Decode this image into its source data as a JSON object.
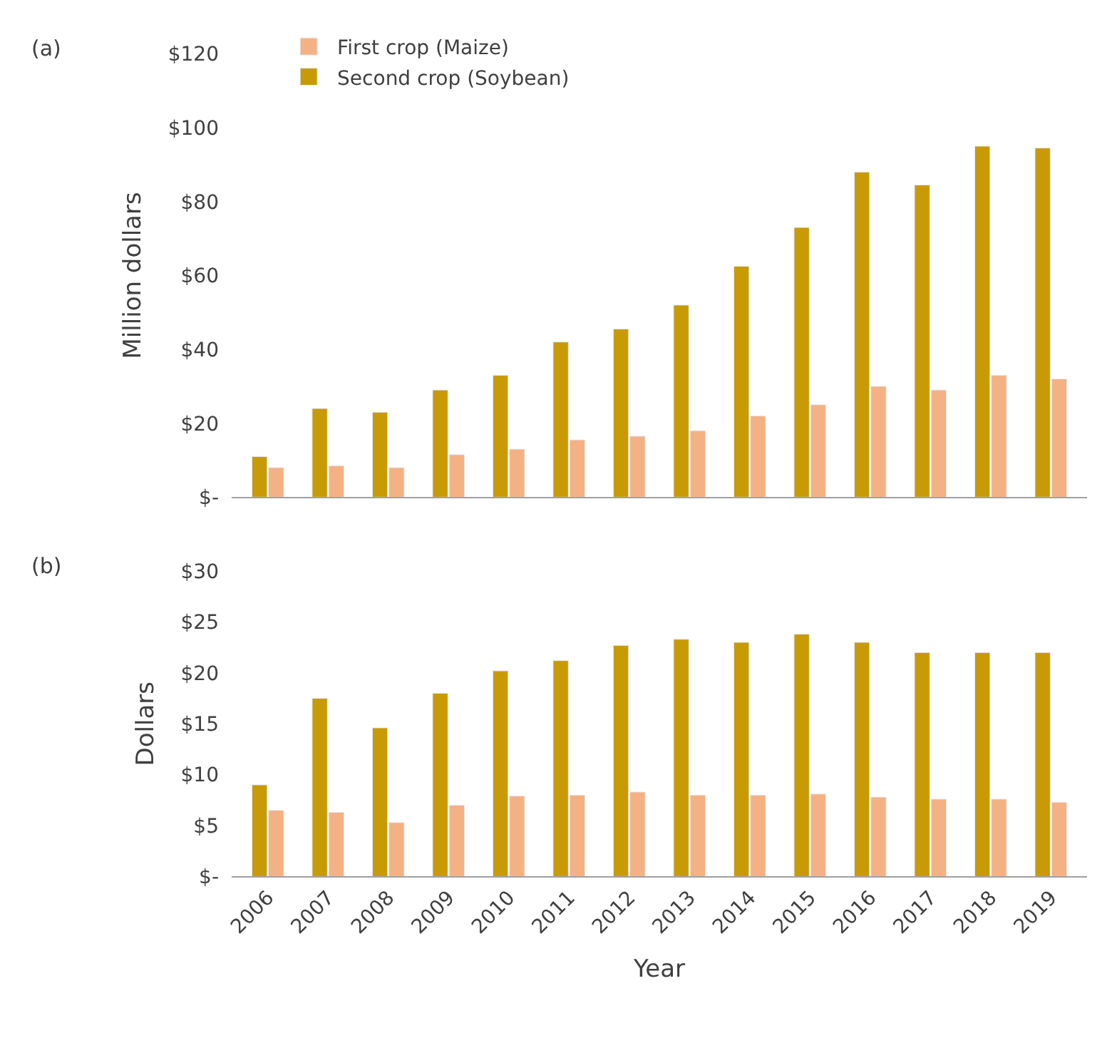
{
  "chart_data": [
    {
      "type": "bar",
      "ylabel": "Million dollars",
      "annotations": [
        "(a)"
      ],
      "categories": [
        "2006",
        "2007",
        "2008",
        "2009",
        "2010",
        "2011",
        "2012",
        "2013",
        "2014",
        "2015",
        "2016",
        "2017",
        "2018",
        "2019"
      ],
      "series": [
        {
          "name": "Second crop (Soybean)",
          "color": "#c89a06",
          "values": [
            11,
            24,
            23,
            29,
            33,
            42,
            45.5,
            52,
            62.5,
            73,
            88,
            84.5,
            95,
            94.5
          ]
        },
        {
          "name": "First crop (Maize)",
          "color": "#f4b183",
          "values": [
            8,
            8.5,
            8,
            11.5,
            13,
            15.5,
            16.5,
            18,
            22,
            25,
            30,
            29,
            33,
            32
          ]
        }
      ],
      "ylim": [
        0,
        120
      ],
      "yticks": [
        {
          "value": 0,
          "label": "$-"
        },
        {
          "value": 20,
          "label": "$20"
        },
        {
          "value": 40,
          "label": "$40"
        },
        {
          "value": 60,
          "label": "$60"
        },
        {
          "value": 80,
          "label": "$80"
        },
        {
          "value": 100,
          "label": "$100"
        },
        {
          "value": 120,
          "label": "$120"
        }
      ],
      "legend": "top left",
      "tick_labels": "y"
    },
    {
      "type": "bar",
      "xlabel": "Year",
      "ylabel": "Dollars",
      "annotations": [
        "(b)"
      ],
      "categories": [
        "2006",
        "2007",
        "2008",
        "2009",
        "2010",
        "2011",
        "2012",
        "2013",
        "2014",
        "2015",
        "2016",
        "2017",
        "2018",
        "2019"
      ],
      "series": [
        {
          "color": "#c89a06",
          "values": [
            9,
            17.5,
            14.6,
            18,
            20.2,
            21.2,
            22.7,
            23.3,
            23,
            23.8,
            23,
            22,
            22,
            22
          ]
        },
        {
          "color": "#f4b183",
          "values": [
            6.5,
            6.3,
            5.3,
            7,
            7.9,
            8,
            8.3,
            8,
            8,
            8.1,
            7.8,
            7.6,
            7.6,
            7.3
          ]
        }
      ],
      "ylim": [
        0,
        30
      ],
      "yticks": [
        {
          "value": 0,
          "label": "$-"
        },
        {
          "value": 5,
          "label": "$5"
        },
        {
          "value": 10,
          "label": "$10"
        },
        {
          "value": 15,
          "label": "$15"
        },
        {
          "value": 20,
          "label": "$20"
        },
        {
          "value": 25,
          "label": "$25"
        },
        {
          "value": 30,
          "label": "$30"
        }
      ],
      "legend": false
    }
  ]
}
